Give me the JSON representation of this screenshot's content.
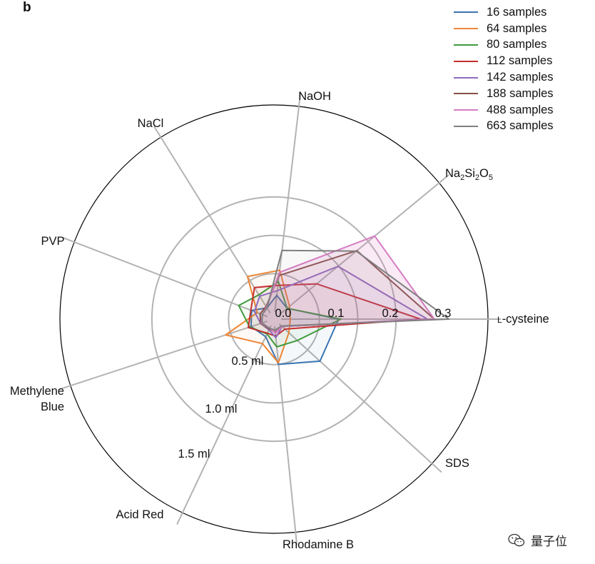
{
  "panel_label": "b",
  "chart_data": {
    "type": "radar",
    "axes": [
      {
        "label": "L-cysteine",
        "small_caps_prefix": "L",
        "rest": "-cysteine",
        "angle": 0
      },
      {
        "label": "Na2Si2O5",
        "angle": 39.5
      },
      {
        "label": "NaOH",
        "angle": 83.3
      },
      {
        "label": "NaCl",
        "angle": 121.9
      },
      {
        "label": "PVP",
        "angle": 158.9
      },
      {
        "label": "Methylene Blue",
        "lines": [
          "Methylene",
          "Blue"
        ],
        "angle": 198.1
      },
      {
        "label": "Acid Red",
        "angle": 244.7
      },
      {
        "label": "Rhodamine B",
        "angle": 275.8
      },
      {
        "label": "SDS",
        "angle": 317.6
      }
    ],
    "volume_rings": [
      {
        "label": "0.5 ml",
        "value": 0.5
      },
      {
        "label": "1.0 ml",
        "value": 1.0
      },
      {
        "label": "1.5 ml",
        "value": 1.5
      }
    ],
    "scale_ticks": [
      {
        "label": "0.0",
        "value": 0.0
      },
      {
        "label": "0.1",
        "value": 0.1
      },
      {
        "label": "0.2",
        "value": 0.2
      },
      {
        "label": "0.3",
        "value": 0.3
      }
    ],
    "series": [
      {
        "name": "16 samples",
        "color": "#3a74b1",
        "fill": false,
        "values": [
          0.75,
          0.13,
          0.22,
          0.08,
          0.22,
          0.22,
          0.16,
          0.5,
          0.72
        ]
      },
      {
        "name": "64 samples",
        "color": "#ef8636",
        "fill": false,
        "values": [
          0.12,
          0.17,
          0.55,
          0.56,
          0.14,
          0.57,
          0.26,
          0.48,
          0.17
        ]
      },
      {
        "name": "80 samples",
        "color": "#3e9a3b",
        "fill": false,
        "values": [
          0.78,
          0.13,
          0.4,
          0.28,
          0.4,
          0.24,
          0.12,
          0.27,
          0.32
        ]
      },
      {
        "name": "112 samples",
        "color": "#c42f2f",
        "fill": false,
        "values": [
          1.82,
          0.63,
          0.35,
          0.39,
          0.23,
          0.26,
          0.11,
          0.13,
          0.1
        ]
      },
      {
        "name": "142 samples",
        "color": "#8d6bbf",
        "fill": false,
        "values": [
          1.91,
          0.99,
          0.28,
          0.26,
          0.18,
          0.09,
          0.06,
          0.15,
          0.05
        ]
      },
      {
        "name": "188 samples",
        "color": "#855047",
        "fill": false,
        "values": [
          2.0,
          1.31,
          0.48,
          0.1,
          0.1,
          0.09,
          0.05,
          0.08,
          0.05
        ]
      },
      {
        "name": "488 samples",
        "color": "#d77cc3",
        "fill": true,
        "values": [
          2.0,
          1.61,
          0.52,
          0.09,
          0.07,
          0.08,
          0.04,
          0.09,
          0.05
        ]
      },
      {
        "name": "663 samples",
        "color": "#7f7f7f",
        "fill": false,
        "values": [
          2.19,
          1.3,
          0.81,
          0.08,
          0.07,
          0.07,
          0.04,
          0.05,
          0.04
        ]
      }
    ],
    "rmax": 2.7,
    "legend_position": "top-right",
    "grid": true
  },
  "watermark": {
    "text": "量子位",
    "icon": "wechat-icon"
  }
}
